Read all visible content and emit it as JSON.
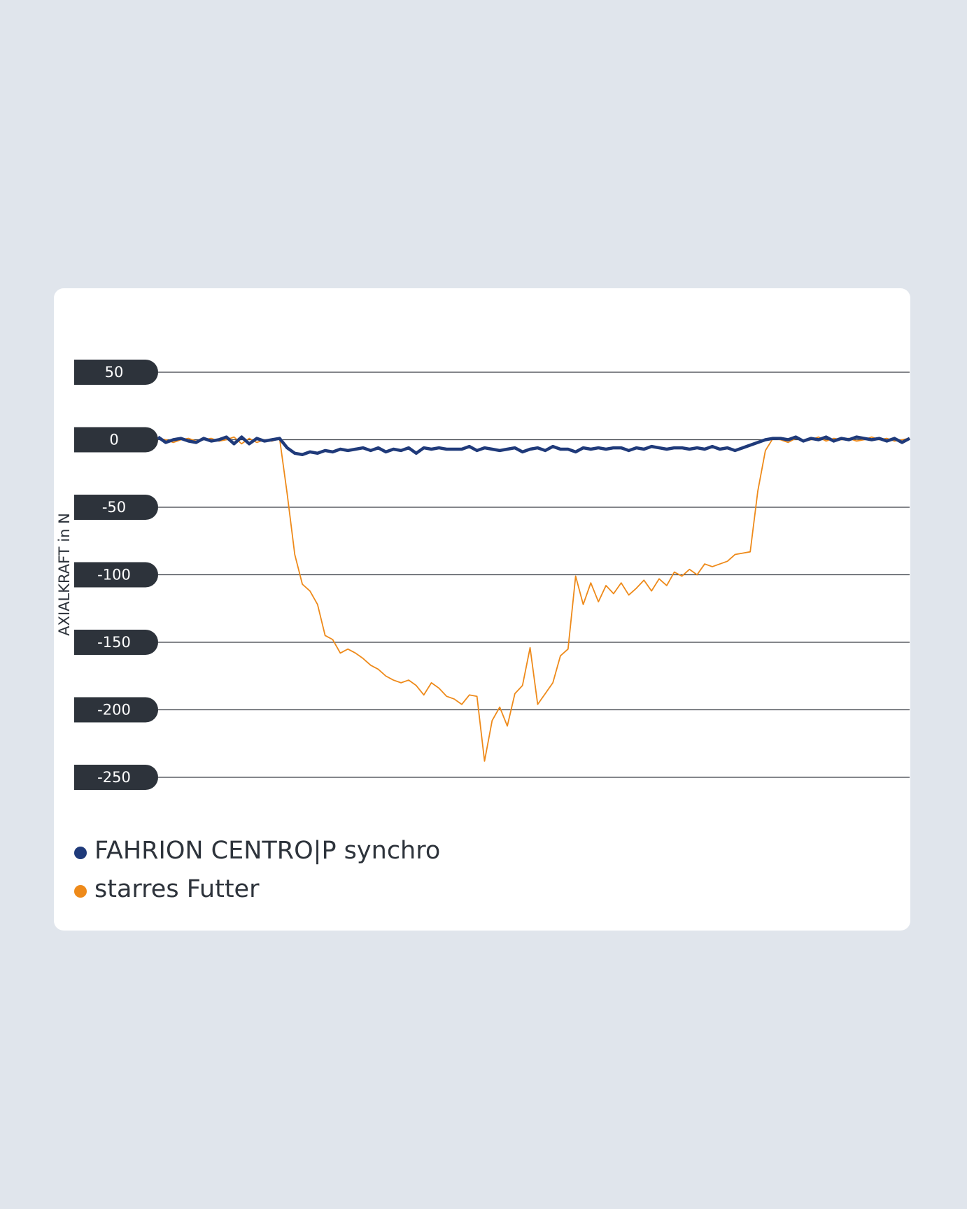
{
  "chart_data": {
    "type": "line",
    "ylabel": "AXIALKRAFT in N",
    "ylim": [
      -250,
      50
    ],
    "yticks": [
      50,
      0,
      -50,
      -100,
      -150,
      -200,
      -250
    ],
    "grid": true,
    "series": [
      {
        "name": "FAHRION CENTRO|P synchro",
        "color": "#1f3a7a",
        "values": [
          2,
          -2,
          0,
          1,
          -1,
          -2,
          1,
          -1,
          0,
          2,
          -3,
          2,
          -3,
          1,
          -1,
          0,
          1,
          -6,
          -10,
          -11,
          -9,
          -10,
          -8,
          -9,
          -7,
          -8,
          -7,
          -6,
          -8,
          -6,
          -9,
          -7,
          -8,
          -6,
          -10,
          -6,
          -7,
          -6,
          -7,
          -7,
          -7,
          -5,
          -8,
          -6,
          -7,
          -8,
          -7,
          -6,
          -9,
          -7,
          -6,
          -8,
          -5,
          -7,
          -7,
          -9,
          -6,
          -7,
          -6,
          -7,
          -6,
          -6,
          -8,
          -6,
          -7,
          -5,
          -6,
          -7,
          -6,
          -6,
          -7,
          -6,
          -7,
          -5,
          -7,
          -6,
          -8,
          -6,
          -4,
          -2,
          0,
          1,
          1,
          0,
          2,
          -1,
          1,
          0,
          2,
          -1,
          1,
          0,
          2,
          1,
          0,
          1,
          -1,
          1,
          -2,
          1
        ]
      },
      {
        "name": "starres Futter",
        "color": "#ee8a1a",
        "values": [
          1,
          0,
          -2,
          0,
          1,
          -1,
          0,
          1,
          -1,
          0,
          2,
          -3,
          1,
          -2,
          0,
          -1,
          1,
          -40,
          -85,
          -107,
          -112,
          -122,
          -145,
          -148,
          -158,
          -155,
          -158,
          -162,
          -167,
          -170,
          -175,
          -178,
          -180,
          -178,
          -182,
          -189,
          -180,
          -184,
          -190,
          -192,
          -196,
          -189,
          -190,
          -238,
          -208,
          -198,
          -212,
          -188,
          -182,
          -154,
          -196,
          -188,
          -180,
          -160,
          -155,
          -101,
          -122,
          -106,
          -120,
          -108,
          -114,
          -106,
          -115,
          -110,
          -104,
          -112,
          -103,
          -108,
          -98,
          -101,
          -96,
          -100,
          -92,
          -94,
          -92,
          -90,
          -85,
          -84,
          -83,
          -38,
          -8,
          1,
          0,
          -2,
          1,
          -1,
          0,
          2,
          -1,
          1,
          0,
          1,
          -1,
          0,
          2,
          0,
          1,
          -1,
          0,
          1
        ]
      }
    ]
  }
}
